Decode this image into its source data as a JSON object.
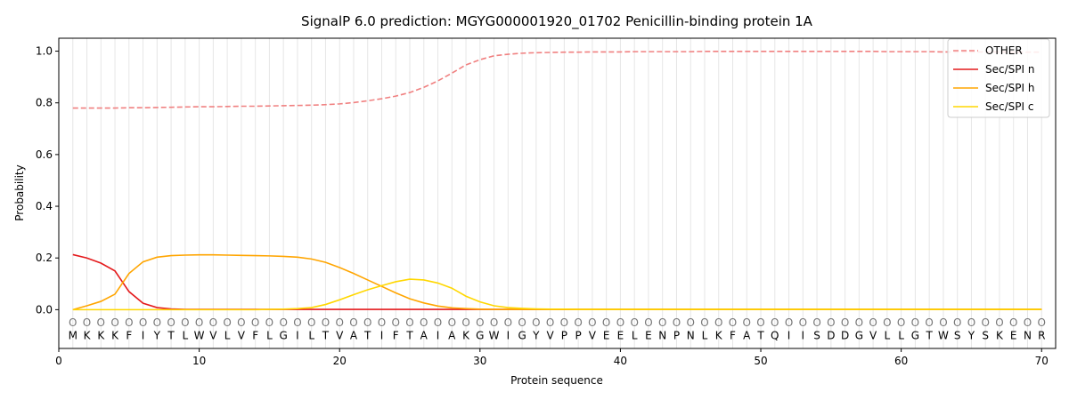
{
  "chart_data": {
    "type": "line",
    "title": "SignalP 6.0 prediction: MGYG000001920_01702 Penicillin-binding protein 1A",
    "xlabel": "Protein sequence",
    "ylabel": "Probability",
    "xlim": [
      0,
      71
    ],
    "ylim": [
      -0.15,
      1.05
    ],
    "xticks": [
      0,
      10,
      20,
      30,
      40,
      50,
      60,
      70
    ],
    "yticks": [
      0.0,
      0.2,
      0.4,
      0.6,
      0.8,
      1.0
    ],
    "xtick_labels": [
      "0",
      "10",
      "20",
      "30",
      "40",
      "50",
      "60",
      "70"
    ],
    "ytick_labels": [
      "0.0",
      "0.2",
      "0.4",
      "0.6",
      "0.8",
      "1.0"
    ],
    "legend_position": "top-right",
    "residues": [
      "M",
      "K",
      "K",
      "K",
      "F",
      "I",
      "Y",
      "T",
      "L",
      "W",
      "V",
      "L",
      "V",
      "F",
      "L",
      "G",
      "I",
      "L",
      "T",
      "V",
      "A",
      "T",
      "I",
      "F",
      "T",
      "A",
      "I",
      "A",
      "K",
      "G",
      "W",
      "I",
      "G",
      "Y",
      "V",
      "P",
      "P",
      "V",
      "E",
      "E",
      "L",
      "E",
      "N",
      "P",
      "N",
      "L",
      "K",
      "F",
      "A",
      "T",
      "Q",
      "I",
      "I",
      "S",
      "D",
      "D",
      "G",
      "V",
      "L",
      "L",
      "G",
      "T",
      "W",
      "S",
      "Y",
      "S",
      "K",
      "E",
      "N",
      "R"
    ],
    "residue_annotation": "O",
    "series": [
      {
        "name": "OTHER",
        "color": "#f08080",
        "dash": true,
        "values": [
          0.78,
          0.78,
          0.78,
          0.78,
          0.781,
          0.781,
          0.782,
          0.783,
          0.784,
          0.785,
          0.785,
          0.786,
          0.787,
          0.787,
          0.788,
          0.789,
          0.79,
          0.791,
          0.793,
          0.796,
          0.801,
          0.808,
          0.816,
          0.826,
          0.84,
          0.86,
          0.885,
          0.915,
          0.947,
          0.967,
          0.982,
          0.988,
          0.992,
          0.994,
          0.995,
          0.996,
          0.996,
          0.997,
          0.997,
          0.997,
          0.998,
          0.998,
          0.998,
          0.998,
          0.998,
          0.999,
          0.999,
          0.999,
          0.999,
          0.999,
          0.999,
          0.999,
          0.999,
          0.999,
          0.999,
          0.999,
          0.999,
          0.999,
          0.998,
          0.998,
          0.998,
          0.998,
          0.997,
          0.997,
          0.997,
          0.997,
          0.997,
          0.996,
          0.996,
          0.996
        ]
      },
      {
        "name": "Sec/SPI n",
        "color": "#e41a1c",
        "dash": false,
        "values": [
          0.213,
          0.2,
          0.18,
          0.15,
          0.07,
          0.025,
          0.008,
          0.003,
          0.001,
          0.001,
          0.001,
          0.001,
          0.001,
          0.001,
          0.001,
          0.001,
          0.001,
          0.001,
          0.001,
          0.001,
          0.001,
          0.001,
          0.001,
          0.001,
          0.001,
          0.001,
          0.001,
          0.001,
          0.001,
          0.001,
          0.001,
          0.001,
          0.001,
          0.001,
          0.001,
          0.001,
          0.001,
          0.001,
          0.001,
          0.001,
          0.001,
          0.001,
          0.001,
          0.001,
          0.001,
          0.001,
          0.001,
          0.001,
          0.001,
          0.001,
          0.001,
          0.001,
          0.001,
          0.001,
          0.001,
          0.001,
          0.001,
          0.001,
          0.001,
          0.001,
          0.001,
          0.001,
          0.001,
          0.001,
          0.001,
          0.001,
          0.001,
          0.001,
          0.001,
          0.001
        ]
      },
      {
        "name": "Sec/SPI h",
        "color": "#ffa500",
        "dash": false,
        "values": [
          0.0,
          0.015,
          0.032,
          0.06,
          0.14,
          0.185,
          0.203,
          0.209,
          0.211,
          0.212,
          0.212,
          0.211,
          0.21,
          0.209,
          0.208,
          0.206,
          0.203,
          0.196,
          0.183,
          0.163,
          0.14,
          0.115,
          0.09,
          0.065,
          0.042,
          0.026,
          0.014,
          0.007,
          0.004,
          0.002,
          0.001,
          0.001,
          0.001,
          0.001,
          0.001,
          0.001,
          0.001,
          0.001,
          0.001,
          0.001,
          0.001,
          0.001,
          0.001,
          0.001,
          0.001,
          0.001,
          0.001,
          0.001,
          0.001,
          0.001,
          0.001,
          0.001,
          0.001,
          0.001,
          0.001,
          0.001,
          0.001,
          0.001,
          0.001,
          0.001,
          0.001,
          0.001,
          0.001,
          0.001,
          0.001,
          0.001,
          0.001,
          0.001,
          0.001,
          0.001
        ]
      },
      {
        "name": "Sec/SPI c",
        "color": "#ffd700",
        "dash": false,
        "values": [
          0.0,
          0.0,
          0.0,
          0.0,
          0.0,
          0.0,
          0.0,
          0.0,
          0.0,
          0.0,
          0.0,
          0.0,
          0.0,
          0.0,
          0.001,
          0.002,
          0.004,
          0.008,
          0.02,
          0.038,
          0.058,
          0.077,
          0.093,
          0.108,
          0.118,
          0.115,
          0.103,
          0.083,
          0.052,
          0.03,
          0.015,
          0.008,
          0.005,
          0.003,
          0.002,
          0.002,
          0.001,
          0.001,
          0.001,
          0.001,
          0.001,
          0.001,
          0.001,
          0.001,
          0.001,
          0.001,
          0.001,
          0.001,
          0.001,
          0.001,
          0.001,
          0.001,
          0.001,
          0.001,
          0.001,
          0.001,
          0.001,
          0.001,
          0.001,
          0.001,
          0.001,
          0.001,
          0.001,
          0.001,
          0.001,
          0.001,
          0.001,
          0.001,
          0.001,
          0.001
        ]
      }
    ]
  }
}
